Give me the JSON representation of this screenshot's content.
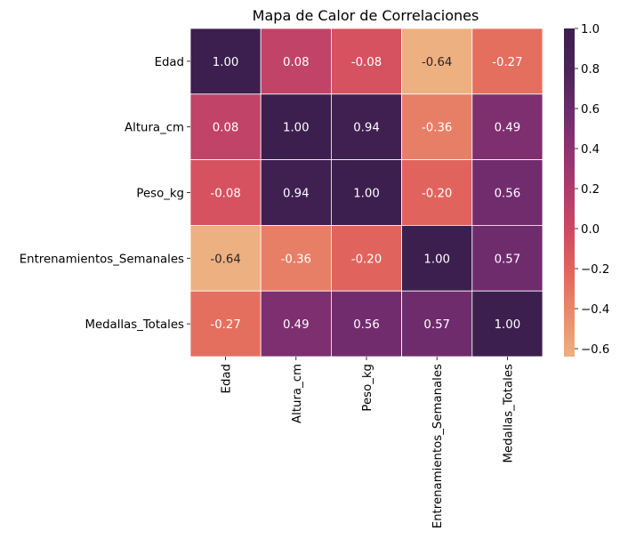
{
  "chart_data": {
    "type": "heatmap",
    "title": "Mapa de Calor de Correlaciones",
    "xlabel": "",
    "ylabel": "",
    "rows": [
      "Edad",
      "Altura_cm",
      "Peso_kg",
      "Entrenamientos_Semanales",
      "Medallas_Totales"
    ],
    "columns": [
      "Edad",
      "Altura_cm",
      "Peso_kg",
      "Entrenamientos_Semanales",
      "Medallas_Totales"
    ],
    "values": [
      [
        1.0,
        0.08,
        -0.08,
        -0.64,
        -0.27
      ],
      [
        0.08,
        1.0,
        0.94,
        -0.36,
        0.49
      ],
      [
        -0.08,
        0.94,
        1.0,
        -0.2,
        0.56
      ],
      [
        -0.64,
        -0.36,
        -0.2,
        1.0,
        0.57
      ],
      [
        -0.27,
        0.49,
        0.56,
        0.57,
        1.0
      ]
    ],
    "cell_labels": [
      [
        "1.00",
        "0.08",
        "-0.08",
        "-0.64",
        "-0.27"
      ],
      [
        "0.08",
        "1.00",
        "0.94",
        "-0.36",
        "0.49"
      ],
      [
        "-0.08",
        "0.94",
        "1.00",
        "-0.20",
        "0.56"
      ],
      [
        "-0.64",
        "-0.36",
        "-0.20",
        "1.00",
        "0.57"
      ],
      [
        "-0.27",
        "0.49",
        "0.56",
        "0.57",
        "1.00"
      ]
    ],
    "colorbar": {
      "range": [
        -0.64,
        1.0
      ],
      "ticks": [
        1.0,
        0.8,
        0.6,
        0.4,
        0.2,
        0.0,
        -0.2,
        -0.4,
        -0.6
      ],
      "tick_labels": [
        "1.0",
        "0.8",
        "0.6",
        "0.4",
        "0.2",
        "0.0",
        "−0.2",
        "−0.4",
        "−0.6"
      ]
    },
    "colormap": "flare",
    "colormap_stops": [
      "#edb081",
      "#e98d6b",
      "#e3685c",
      "#d14a61",
      "#b13c6c",
      "#8f3371",
      "#6c2b6d",
      "#4a2457",
      "#3c1f4e"
    ],
    "grid": true,
    "grid_color": "#ffffff",
    "legend": "right-colorbar"
  }
}
